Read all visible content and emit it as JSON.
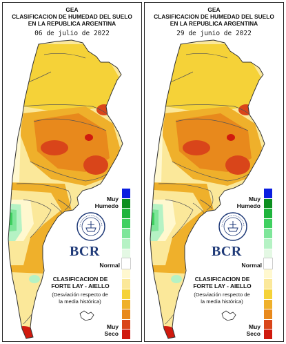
{
  "header": {
    "line1": "GEA",
    "line2": "CLASIFICACION DE HUMEDAD DEL SUELO",
    "line3": "EN LA REPUBLICA ARGENTINA"
  },
  "panels": [
    {
      "date": "06 de julio de 2022"
    },
    {
      "date": "29 de junio de 2022"
    }
  ],
  "legend": {
    "top_label_1": "Muy",
    "top_label_2": "Humedo",
    "middle_label": "Normal",
    "bottom_label_1": "Muy",
    "bottom_label_2": "Seco",
    "colors": [
      "#0a1ee0",
      "#0b8f1f",
      "#1eb43c",
      "#3fd060",
      "#7ee69a",
      "#b5f2c4",
      "#e4f8e4",
      "#ffffff",
      "#fff8cf",
      "#fbe89a",
      "#f5d238",
      "#efb02b",
      "#e8891c",
      "#d9451a",
      "#d01a0e"
    ]
  },
  "logo": {
    "name": "BCR",
    "seal_text": "BOLSA DE COMERCIO DE ROSARIO"
  },
  "footer": {
    "title_1": "CLASIFICACION DE",
    "title_2": "FORTE LAY - AIELLO",
    "desc_1": "(Desviación respecto de",
    "desc_2": "la media histórica)"
  }
}
